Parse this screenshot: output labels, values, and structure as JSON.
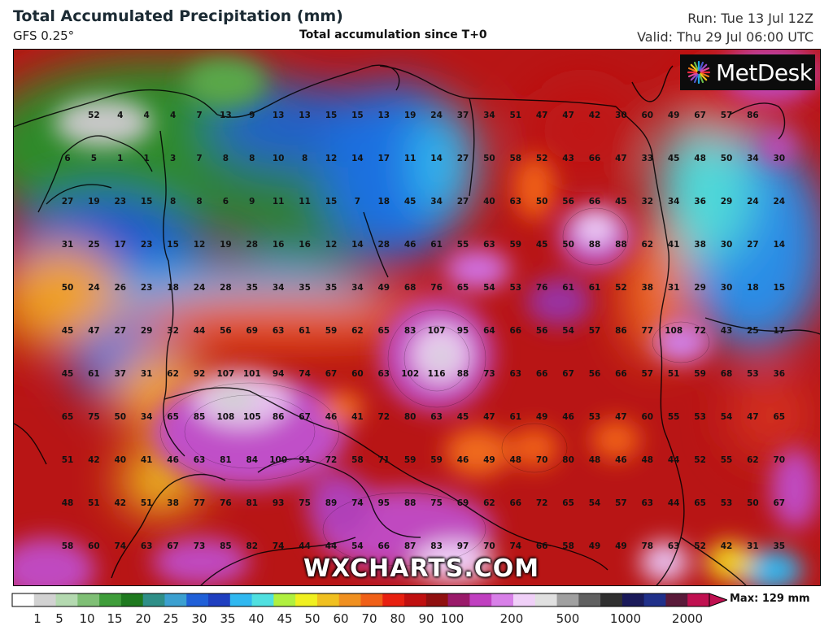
{
  "header": {
    "title": "Total Accumulated Precipitation (mm)",
    "model": "GFS 0.25°",
    "center_title": "Total accumulation since T+0",
    "run": "Run: Tue 13 Jul 12Z",
    "valid": "Valid: Thu 29 Jul 06:00 UTC"
  },
  "logo": {
    "text": "MetDesk",
    "icon": "metdesk-starburst-icon"
  },
  "watermark": "WXCHARTS.COM",
  "legend": {
    "ticks": [
      "1",
      "5",
      "10",
      "15",
      "20",
      "25",
      "30",
      "35",
      "40",
      "45",
      "50",
      "60",
      "70",
      "80",
      "90",
      "100",
      "200",
      "500",
      "1000",
      "2000"
    ],
    "max_label": "Max: 129 mm",
    "colors": [
      "#ffffff",
      "#d2d2d2",
      "#b4d9b0",
      "#7fbf75",
      "#3f9d3a",
      "#1f7a1f",
      "#2f8f88",
      "#3ca0d0",
      "#2060d8",
      "#1f3fc0",
      "#30b8f0",
      "#50e0e0",
      "#b0f040",
      "#f0f020",
      "#f0c020",
      "#f09020",
      "#f06018",
      "#e82010",
      "#c01010",
      "#901010",
      "#9a1a6a",
      "#c040c0",
      "#d880e8",
      "#f0d0f8",
      "#e0e0e0",
      "#a0a0a0",
      "#606060",
      "#303030",
      "#1a1a5a",
      "#20308a",
      "#5a1a3a",
      "#c01050"
    ]
  },
  "map_values": [
    [
      "",
      "52",
      "4",
      "4",
      "4",
      "7",
      "13",
      "9",
      "13",
      "13",
      "15",
      "15",
      "13",
      "19",
      "24",
      "37",
      "34",
      "51",
      "47",
      "47",
      "42",
      "30",
      "60",
      "49",
      "67",
      "57",
      "86"
    ],
    [
      "6",
      "5",
      "1",
      "1",
      "3",
      "7",
      "8",
      "8",
      "10",
      "8",
      "12",
      "14",
      "17",
      "11",
      "14",
      "27",
      "50",
      "58",
      "52",
      "43",
      "66",
      "47",
      "33",
      "45",
      "48",
      "50",
      "34",
      "30"
    ],
    [
      "27",
      "19",
      "23",
      "15",
      "8",
      "8",
      "6",
      "9",
      "11",
      "11",
      "15",
      "7",
      "18",
      "45",
      "34",
      "27",
      "40",
      "63",
      "50",
      "56",
      "66",
      "45",
      "32",
      "34",
      "36",
      "29",
      "24",
      "24"
    ],
    [
      "31",
      "25",
      "17",
      "23",
      "15",
      "12",
      "19",
      "28",
      "16",
      "16",
      "12",
      "14",
      "28",
      "46",
      "61",
      "55",
      "63",
      "59",
      "45",
      "50",
      "88",
      "88",
      "62",
      "41",
      "38",
      "30",
      "27",
      "14"
    ],
    [
      "50",
      "24",
      "26",
      "23",
      "18",
      "24",
      "28",
      "35",
      "34",
      "35",
      "35",
      "34",
      "49",
      "68",
      "76",
      "65",
      "54",
      "53",
      "76",
      "61",
      "61",
      "52",
      "38",
      "31",
      "29",
      "30",
      "18",
      "15"
    ],
    [
      "45",
      "47",
      "27",
      "29",
      "32",
      "44",
      "56",
      "69",
      "63",
      "61",
      "59",
      "62",
      "65",
      "83",
      "107",
      "95",
      "64",
      "66",
      "56",
      "54",
      "57",
      "86",
      "77",
      "108",
      "72",
      "43",
      "25",
      "17"
    ],
    [
      "45",
      "61",
      "37",
      "31",
      "62",
      "92",
      "107",
      "101",
      "94",
      "74",
      "67",
      "60",
      "63",
      "102",
      "116",
      "88",
      "73",
      "63",
      "66",
      "67",
      "56",
      "66",
      "57",
      "51",
      "59",
      "68",
      "53",
      "36"
    ],
    [
      "65",
      "75",
      "50",
      "34",
      "65",
      "85",
      "108",
      "105",
      "86",
      "67",
      "46",
      "41",
      "72",
      "80",
      "63",
      "45",
      "47",
      "61",
      "49",
      "46",
      "53",
      "47",
      "60",
      "55",
      "53",
      "54",
      "47",
      "65"
    ],
    [
      "51",
      "42",
      "40",
      "41",
      "46",
      "63",
      "81",
      "84",
      "100",
      "91",
      "72",
      "58",
      "71",
      "59",
      "59",
      "46",
      "49",
      "48",
      "70",
      "80",
      "48",
      "46",
      "48",
      "44",
      "52",
      "55",
      "62",
      "70"
    ],
    [
      "48",
      "51",
      "42",
      "51",
      "38",
      "77",
      "76",
      "81",
      "93",
      "75",
      "89",
      "74",
      "95",
      "88",
      "75",
      "69",
      "62",
      "66",
      "72",
      "65",
      "54",
      "57",
      "63",
      "44",
      "65",
      "53",
      "50",
      "67"
    ],
    [
      "58",
      "60",
      "74",
      "63",
      "67",
      "73",
      "85",
      "82",
      "74",
      "44",
      "44",
      "54",
      "66",
      "87",
      "83",
      "97",
      "70",
      "74",
      "66",
      "58",
      "49",
      "49",
      "78",
      "63",
      "52",
      "42",
      "31",
      "35"
    ]
  ]
}
